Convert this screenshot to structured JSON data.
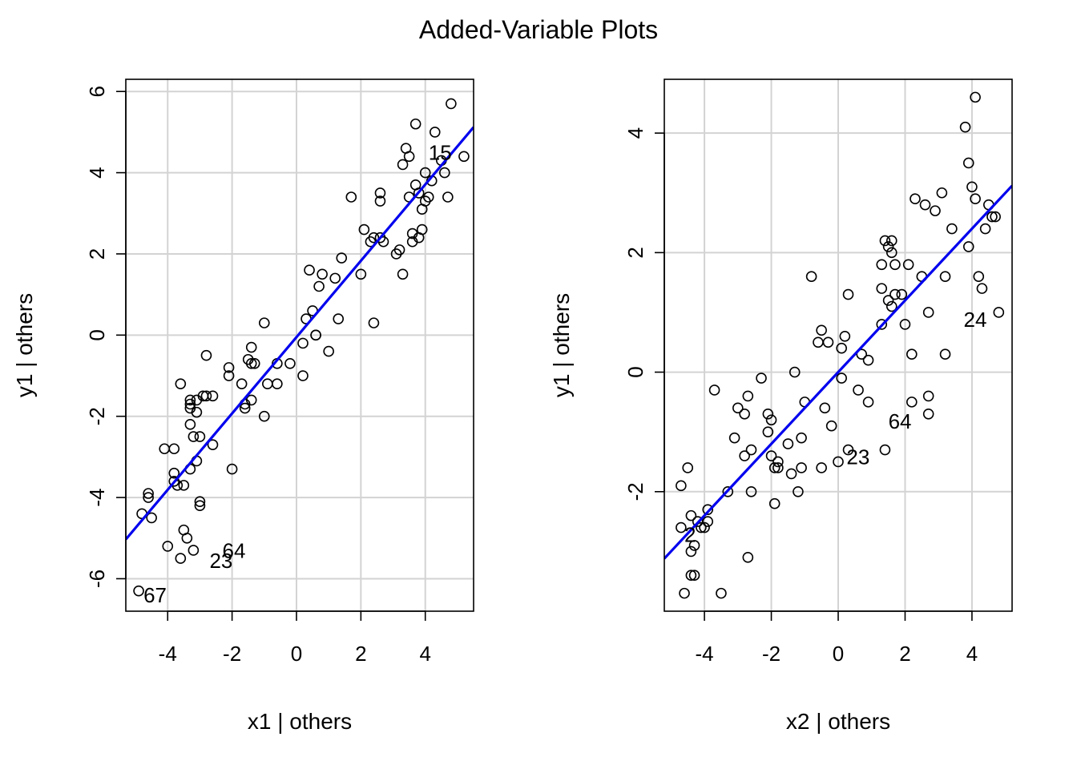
{
  "title": "Added-Variable Plots",
  "chart_data": [
    {
      "type": "scatter",
      "xlabel": "x1 | others",
      "ylabel": "y1  | others",
      "xlim": [
        -5.3,
        5.5
      ],
      "ylim": [
        -6.8,
        6.3
      ],
      "xticks": [
        -4,
        -2,
        0,
        2,
        4
      ],
      "yticks": [
        -6,
        -4,
        -2,
        0,
        2,
        4,
        6
      ],
      "grid": true,
      "fit_line": {
        "color": "#0000ee",
        "intercept": -0.05,
        "slope": 0.94
      },
      "points": [
        [
          -4.9,
          -6.3
        ],
        [
          -4.8,
          -4.4
        ],
        [
          -4.6,
          -3.9
        ],
        [
          -4.6,
          -4.0
        ],
        [
          -4.5,
          -4.5
        ],
        [
          -4.0,
          -5.2
        ],
        [
          -4.1,
          -2.8
        ],
        [
          -3.8,
          -2.8
        ],
        [
          -3.8,
          -3.4
        ],
        [
          -3.8,
          -3.6
        ],
        [
          -3.7,
          -3.7
        ],
        [
          -3.6,
          -5.5
        ],
        [
          -3.5,
          -4.8
        ],
        [
          -3.5,
          -3.7
        ],
        [
          -3.6,
          -1.2
        ],
        [
          -3.4,
          -5.0
        ],
        [
          -3.3,
          -1.6
        ],
        [
          -3.3,
          -1.7
        ],
        [
          -3.3,
          -1.8
        ],
        [
          -3.3,
          -2.2
        ],
        [
          -3.3,
          -3.3
        ],
        [
          -3.2,
          -2.5
        ],
        [
          -3.2,
          -5.3
        ],
        [
          -3.1,
          -3.1
        ],
        [
          -3.1,
          -1.6
        ],
        [
          -3.1,
          -1.9
        ],
        [
          -3.0,
          -2.5
        ],
        [
          -3.0,
          -4.1
        ],
        [
          -3.0,
          -4.2
        ],
        [
          -2.9,
          -1.5
        ],
        [
          -2.8,
          -0.5
        ],
        [
          -2.8,
          -1.5
        ],
        [
          -2.6,
          -1.5
        ],
        [
          -2.6,
          -2.7
        ],
        [
          -2.1,
          -0.8
        ],
        [
          -2.1,
          -1.0
        ],
        [
          -2.0,
          -3.3
        ],
        [
          -1.7,
          -1.2
        ],
        [
          -1.6,
          -1.7
        ],
        [
          -1.6,
          -1.8
        ],
        [
          -1.5,
          -0.6
        ],
        [
          -1.4,
          -0.7
        ],
        [
          -1.4,
          -0.3
        ],
        [
          -1.4,
          -1.6
        ],
        [
          -1.3,
          -0.7
        ],
        [
          -1.0,
          0.3
        ],
        [
          -1.0,
          -2.0
        ],
        [
          -0.9,
          -1.2
        ],
        [
          -0.6,
          -1.2
        ],
        [
          -0.6,
          -0.7
        ],
        [
          -0.2,
          -0.7
        ],
        [
          0.2,
          -0.2
        ],
        [
          0.2,
          -1.0
        ],
        [
          0.3,
          0.4
        ],
        [
          0.4,
          1.6
        ],
        [
          0.5,
          0.6
        ],
        [
          0.6,
          0.0
        ],
        [
          0.6,
          0.0
        ],
        [
          0.7,
          1.2
        ],
        [
          0.8,
          1.5
        ],
        [
          1.0,
          -0.4
        ],
        [
          1.2,
          1.4
        ],
        [
          1.3,
          0.4
        ],
        [
          1.4,
          1.9
        ],
        [
          1.7,
          3.4
        ],
        [
          2.0,
          1.5
        ],
        [
          2.1,
          2.6
        ],
        [
          2.3,
          2.3
        ],
        [
          2.4,
          2.4
        ],
        [
          2.4,
          0.3
        ],
        [
          2.6,
          3.3
        ],
        [
          2.6,
          3.5
        ],
        [
          2.6,
          2.4
        ],
        [
          2.7,
          2.3
        ],
        [
          3.1,
          2.0
        ],
        [
          3.2,
          2.1
        ],
        [
          3.3,
          4.2
        ],
        [
          3.3,
          1.5
        ],
        [
          3.4,
          4.6
        ],
        [
          3.5,
          4.4
        ],
        [
          3.5,
          3.4
        ],
        [
          3.6,
          2.3
        ],
        [
          3.6,
          2.5
        ],
        [
          3.7,
          3.7
        ],
        [
          3.7,
          5.2
        ],
        [
          3.8,
          2.4
        ],
        [
          3.8,
          3.5
        ],
        [
          3.9,
          2.6
        ],
        [
          3.9,
          3.1
        ],
        [
          4.0,
          3.3
        ],
        [
          4.0,
          4.0
        ],
        [
          4.1,
          3.4
        ],
        [
          4.2,
          3.8
        ],
        [
          4.3,
          5.0
        ],
        [
          4.5,
          4.3
        ],
        [
          4.6,
          4.0
        ],
        [
          4.7,
          3.4
        ],
        [
          4.8,
          5.7
        ],
        [
          5.2,
          4.4
        ]
      ],
      "annotations": [
        {
          "label": "15",
          "x": 4.1,
          "y": 4.45,
          "anchor": "start"
        },
        {
          "label": "64",
          "x": -2.3,
          "y": -5.35,
          "anchor": "start"
        },
        {
          "label": "23",
          "x": -2.7,
          "y": -5.6,
          "anchor": "start"
        },
        {
          "label": "67",
          "x": -4.75,
          "y": -6.45,
          "anchor": "start"
        }
      ]
    },
    {
      "type": "scatter",
      "xlabel": "x2 | others",
      "ylabel": "y1  | others",
      "xlim": [
        -5.2,
        5.2
      ],
      "ylim": [
        -4.0,
        4.9
      ],
      "xticks": [
        -4,
        -2,
        0,
        2,
        4
      ],
      "yticks": [
        -2,
        0,
        2,
        4
      ],
      "grid": true,
      "fit_line": {
        "color": "#0000ee",
        "intercept": 0.0,
        "slope": 0.6
      },
      "points": [
        [
          -4.7,
          -2.6
        ],
        [
          -4.7,
          -1.9
        ],
        [
          -4.5,
          -1.6
        ],
        [
          -4.6,
          -3.7
        ],
        [
          -4.4,
          -2.4
        ],
        [
          -4.4,
          -3.0
        ],
        [
          -4.4,
          -3.4
        ],
        [
          -4.3,
          -2.9
        ],
        [
          -4.3,
          -3.4
        ],
        [
          -4.2,
          -2.5
        ],
        [
          -4.1,
          -2.6
        ],
        [
          -4.0,
          -2.6
        ],
        [
          -3.9,
          -2.3
        ],
        [
          -3.9,
          -2.5
        ],
        [
          -3.7,
          -0.3
        ],
        [
          -3.5,
          -3.7
        ],
        [
          -3.3,
          -2.0
        ],
        [
          -3.1,
          -1.1
        ],
        [
          -3.0,
          -0.6
        ],
        [
          -2.8,
          -0.7
        ],
        [
          -2.8,
          -1.4
        ],
        [
          -2.7,
          -3.1
        ],
        [
          -2.7,
          -0.4
        ],
        [
          -2.6,
          -2.0
        ],
        [
          -2.6,
          -1.3
        ],
        [
          -2.3,
          -0.1
        ],
        [
          -2.1,
          -0.7
        ],
        [
          -2.1,
          -1.0
        ],
        [
          -2.0,
          -0.8
        ],
        [
          -2.0,
          -1.4
        ],
        [
          -1.9,
          -1.6
        ],
        [
          -1.9,
          -2.2
        ],
        [
          -1.8,
          -1.6
        ],
        [
          -1.8,
          -1.5
        ],
        [
          -1.5,
          -1.2
        ],
        [
          -1.4,
          -1.7
        ],
        [
          -1.3,
          0.0
        ],
        [
          -1.2,
          -2.0
        ],
        [
          -1.1,
          -1.6
        ],
        [
          -1.1,
          -1.1
        ],
        [
          -1.0,
          -0.5
        ],
        [
          -0.8,
          1.6
        ],
        [
          -0.6,
          0.5
        ],
        [
          -0.5,
          0.7
        ],
        [
          -0.5,
          -1.6
        ],
        [
          -0.4,
          -0.6
        ],
        [
          -0.3,
          0.5
        ],
        [
          -0.2,
          -0.9
        ],
        [
          0.0,
          -1.5
        ],
        [
          0.1,
          0.4
        ],
        [
          0.1,
          -0.1
        ],
        [
          0.2,
          0.6
        ],
        [
          0.3,
          1.3
        ],
        [
          0.3,
          -1.3
        ],
        [
          0.6,
          -0.3
        ],
        [
          0.7,
          0.3
        ],
        [
          0.9,
          0.2
        ],
        [
          0.9,
          -0.5
        ],
        [
          1.3,
          0.8
        ],
        [
          1.3,
          1.4
        ],
        [
          1.3,
          1.8
        ],
        [
          1.4,
          2.2
        ],
        [
          1.4,
          -1.3
        ],
        [
          1.5,
          1.2
        ],
        [
          1.5,
          2.1
        ],
        [
          1.6,
          2.0
        ],
        [
          1.6,
          2.2
        ],
        [
          1.6,
          1.1
        ],
        [
          1.7,
          1.3
        ],
        [
          1.7,
          1.8
        ],
        [
          1.9,
          1.3
        ],
        [
          2.0,
          0.8
        ],
        [
          2.1,
          1.8
        ],
        [
          2.2,
          -0.5
        ],
        [
          2.2,
          0.3
        ],
        [
          2.3,
          2.9
        ],
        [
          2.5,
          1.6
        ],
        [
          2.6,
          2.8
        ],
        [
          2.7,
          1.0
        ],
        [
          2.7,
          -0.4
        ],
        [
          2.7,
          -0.7
        ],
        [
          2.9,
          2.7
        ],
        [
          3.1,
          3.0
        ],
        [
          3.2,
          1.6
        ],
        [
          3.2,
          0.3
        ],
        [
          3.4,
          2.4
        ],
        [
          3.8,
          4.1
        ],
        [
          3.9,
          3.5
        ],
        [
          3.9,
          2.1
        ],
        [
          4.0,
          3.1
        ],
        [
          4.1,
          2.9
        ],
        [
          4.1,
          4.6
        ],
        [
          4.2,
          1.6
        ],
        [
          4.3,
          1.4
        ],
        [
          4.4,
          2.4
        ],
        [
          4.5,
          2.8
        ],
        [
          4.6,
          2.6
        ],
        [
          4.7,
          2.6
        ],
        [
          4.8,
          1.0
        ]
      ],
      "annotations": [
        {
          "label": "24",
          "x": 3.75,
          "y": 0.85,
          "anchor": "start"
        },
        {
          "label": "64",
          "x": 1.5,
          "y": -0.85,
          "anchor": "start"
        },
        {
          "label": "23",
          "x": 0.25,
          "y": -1.45,
          "anchor": "start"
        },
        {
          "label": "2",
          "x": -4.6,
          "y": -2.75,
          "anchor": "start"
        }
      ]
    }
  ]
}
